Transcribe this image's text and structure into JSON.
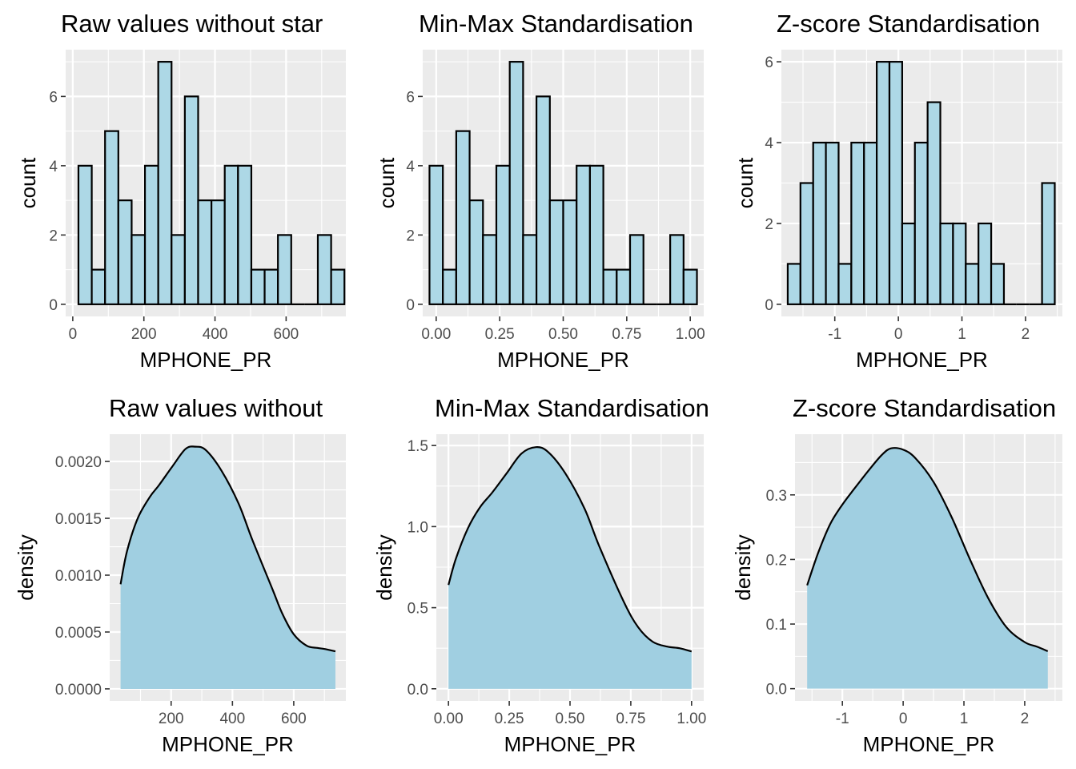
{
  "colors": {
    "fill": "#add8e6",
    "outline": "#000000",
    "panel_background": "#ebebeb",
    "grid": "#ffffff"
  },
  "chart_data": [
    {
      "type": "bar",
      "title": "Raw values without star",
      "xlabel": "MPHONE_PR",
      "ylabel": "count",
      "xlim": [
        -20,
        768
      ],
      "ylim": [
        -0.35,
        7.35
      ],
      "x_ticks": [
        0,
        200,
        400,
        600
      ],
      "x_tick_labels": [
        "0",
        "200",
        "400",
        "600"
      ],
      "y_ticks": [
        0,
        2,
        4,
        6
      ],
      "y_tick_labels": [
        "0",
        "2",
        "4",
        "6"
      ],
      "bin_start": 16,
      "bin_width": 37.4,
      "values": [
        4,
        1,
        5,
        3,
        2,
        4,
        7,
        2,
        6,
        3,
        3,
        4,
        4,
        1,
        1,
        2,
        0,
        0,
        2,
        1
      ],
      "grid": true
    },
    {
      "type": "bar",
      "title": "Min-Max Standardisation",
      "xlabel": "MPHONE_PR",
      "ylabel": "count",
      "xlim": [
        -0.053,
        1.053
      ],
      "ylim": [
        -0.35,
        7.35
      ],
      "x_ticks": [
        0,
        0.25,
        0.5,
        0.75,
        1.0
      ],
      "x_tick_labels": [
        "0.00",
        "0.25",
        "0.50",
        "0.75",
        "1.00"
      ],
      "y_ticks": [
        0,
        2,
        4,
        6
      ],
      "y_tick_labels": [
        "0",
        "2",
        "4",
        "6"
      ],
      "bin_start": -0.0263,
      "bin_width": 0.05263,
      "values": [
        4,
        1,
        5,
        3,
        2,
        4,
        7,
        2,
        6,
        3,
        3,
        4,
        4,
        1,
        1,
        2,
        0,
        0,
        2,
        1
      ],
      "grid": true
    },
    {
      "type": "bar",
      "title": "Z-score Standardisation",
      "xlabel": "MPHONE_PR",
      "ylabel": "count",
      "xlim": [
        -1.84,
        2.58
      ],
      "ylim": [
        -0.3,
        6.3
      ],
      "x_ticks": [
        -1,
        0,
        1,
        2
      ],
      "x_tick_labels": [
        "-1",
        "0",
        "1",
        "2"
      ],
      "y_ticks": [
        0,
        2,
        4,
        6
      ],
      "y_tick_labels": [
        "0",
        "2",
        "4",
        "6"
      ],
      "bin_start": -1.74,
      "bin_width": 0.2,
      "values": [
        1,
        3,
        4,
        4,
        1,
        4,
        4,
        6,
        6,
        2,
        4,
        5,
        2,
        2,
        1,
        2,
        1,
        0,
        0,
        0,
        3
      ],
      "grid": true
    },
    {
      "type": "area",
      "title": "Raw values without",
      "xlabel": "MPHONE_PR",
      "ylabel": "density",
      "xlim": [
        -0.5,
        770
      ],
      "ylim": [
        -0.000106,
        0.00224
      ],
      "x_ticks": [
        200,
        400,
        600
      ],
      "x_tick_labels": [
        "200",
        "400",
        "600"
      ],
      "y_ticks": [
        0,
        0.0005,
        0.001,
        0.0015,
        0.002
      ],
      "y_tick_labels": [
        "0.0000",
        "0.0005",
        "0.0010",
        "0.0015",
        "0.0020"
      ],
      "x": [
        35,
        56,
        91,
        131,
        160,
        205,
        247,
        279,
        313,
        364,
        420,
        465,
        530,
        563,
        600,
        642,
        677,
        703,
        736
      ],
      "y": [
        0.00092,
        0.00121,
        0.0015,
        0.00169,
        0.00179,
        0.00196,
        0.00211,
        0.00213,
        0.0021,
        0.00192,
        0.00163,
        0.00131,
        0.00088,
        0.00066,
        0.00048,
        0.00038,
        0.00036,
        0.00035,
        0.00033
      ],
      "grid": true
    },
    {
      "type": "area",
      "title": "Min-Max Standardisation",
      "xlabel": "MPHONE_PR",
      "ylabel": "density",
      "xlim": [
        -0.05,
        1.05
      ],
      "ylim": [
        -0.075,
        1.57
      ],
      "x_ticks": [
        0,
        0.25,
        0.5,
        0.75,
        1.0
      ],
      "x_tick_labels": [
        "0.00",
        "0.25",
        "0.50",
        "0.75",
        "1.00"
      ],
      "y_ticks": [
        0,
        0.5,
        1.0,
        1.5
      ],
      "y_tick_labels": [
        "0.0",
        "0.5",
        "1.0",
        "1.5"
      ],
      "x": [
        0,
        0.03,
        0.08,
        0.13,
        0.18,
        0.24,
        0.3,
        0.36,
        0.41,
        0.48,
        0.56,
        0.62,
        0.72,
        0.78,
        0.84,
        0.9,
        0.95,
        1.0
      ],
      "y": [
        0.64,
        0.8,
        0.99,
        1.12,
        1.21,
        1.33,
        1.45,
        1.49,
        1.46,
        1.33,
        1.11,
        0.88,
        0.54,
        0.38,
        0.29,
        0.26,
        0.25,
        0.23
      ],
      "grid": true
    },
    {
      "type": "area",
      "title": "Z-score Standardisation",
      "xlabel": "MPHONE_PR",
      "ylabel": "density",
      "xlim": [
        -1.78,
        2.62
      ],
      "ylim": [
        -0.019,
        0.394
      ],
      "x_ticks": [
        -1,
        0,
        1,
        2
      ],
      "x_tick_labels": [
        "-1",
        "0",
        "1",
        "2"
      ],
      "y_ticks": [
        0,
        0.1,
        0.2,
        0.3
      ],
      "y_tick_labels": [
        "0.0",
        "0.1",
        "0.2",
        "0.3"
      ],
      "x": [
        -1.58,
        -1.4,
        -1.2,
        -1.0,
        -0.8,
        -0.55,
        -0.35,
        -0.2,
        0.0,
        0.2,
        0.5,
        0.8,
        1.1,
        1.4,
        1.7,
        2.0,
        2.2,
        2.38
      ],
      "y": [
        0.16,
        0.21,
        0.255,
        0.285,
        0.31,
        0.34,
        0.362,
        0.372,
        0.37,
        0.357,
        0.32,
        0.265,
        0.2,
        0.14,
        0.095,
        0.072,
        0.065,
        0.058
      ],
      "grid": true
    }
  ]
}
